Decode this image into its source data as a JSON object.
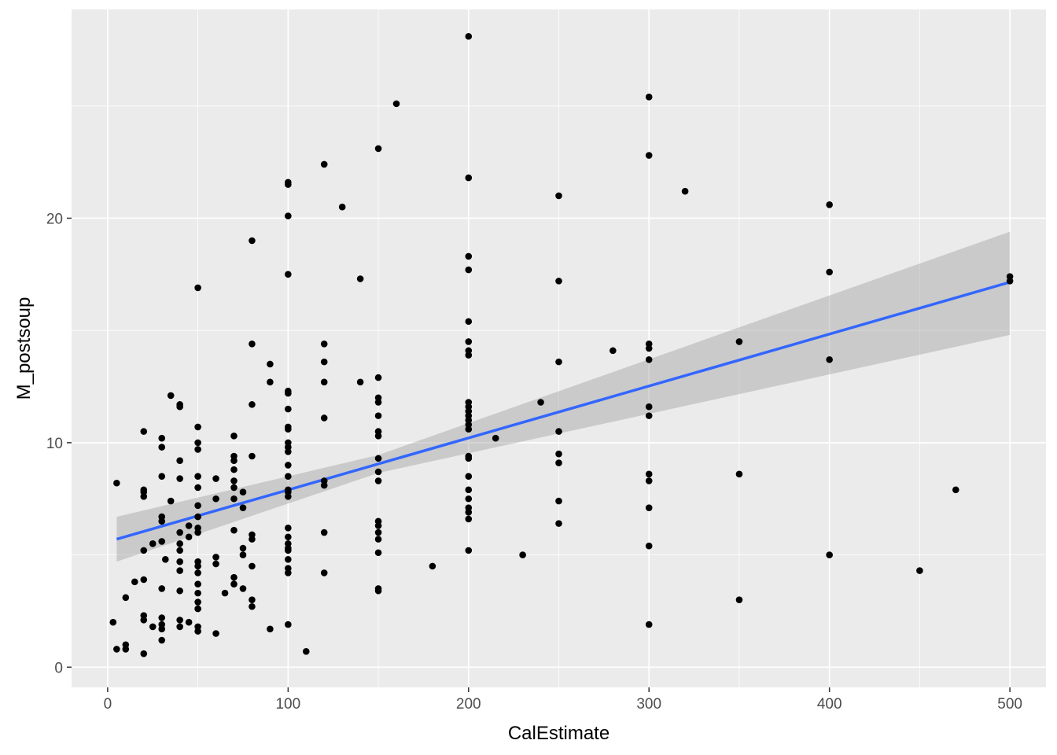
{
  "chart_data": {
    "type": "scatter",
    "xlabel": "CalEstimate",
    "ylabel": "M_postsoup",
    "xlim": [
      -20,
      520
    ],
    "ylim": [
      -0.9,
      29.3
    ],
    "x_ticks": [
      0,
      100,
      200,
      300,
      400,
      500
    ],
    "y_ticks": [
      0,
      10,
      20
    ],
    "x_tick_labels": [
      "0",
      "100",
      "200",
      "300",
      "400",
      "500"
    ],
    "y_tick_labels": [
      "0",
      "10",
      "20"
    ],
    "grid": true,
    "legend": "none",
    "points": [
      [
        5,
        8.2
      ],
      [
        5,
        0.8
      ],
      [
        3,
        2.0
      ],
      [
        10,
        1.0
      ],
      [
        10,
        0.8
      ],
      [
        10,
        3.1
      ],
      [
        15,
        3.8
      ],
      [
        20,
        10.5
      ],
      [
        20,
        7.9
      ],
      [
        20,
        7.6
      ],
      [
        20,
        7.8
      ],
      [
        20,
        5.2
      ],
      [
        20,
        3.9
      ],
      [
        20,
        2.3
      ],
      [
        20,
        2.1
      ],
      [
        20,
        0.6
      ],
      [
        25,
        5.5
      ],
      [
        25,
        1.8
      ],
      [
        30,
        10.2
      ],
      [
        30,
        9.8
      ],
      [
        30,
        8.5
      ],
      [
        30,
        6.7
      ],
      [
        30,
        6.5
      ],
      [
        30,
        5.6
      ],
      [
        30,
        3.5
      ],
      [
        30,
        2.2
      ],
      [
        30,
        1.9
      ],
      [
        30,
        1.7
      ],
      [
        30,
        1.2
      ],
      [
        32,
        4.8
      ],
      [
        35,
        12.1
      ],
      [
        35,
        7.4
      ],
      [
        40,
        11.7
      ],
      [
        40,
        11.6
      ],
      [
        40,
        9.2
      ],
      [
        40,
        8.4
      ],
      [
        40,
        6.0
      ],
      [
        40,
        5.5
      ],
      [
        40,
        5.2
      ],
      [
        40,
        4.7
      ],
      [
        40,
        4.3
      ],
      [
        40,
        3.4
      ],
      [
        40,
        2.1
      ],
      [
        40,
        1.8
      ],
      [
        45,
        6.3
      ],
      [
        45,
        5.8
      ],
      [
        45,
        2.0
      ],
      [
        50,
        16.9
      ],
      [
        50,
        10.7
      ],
      [
        50,
        10.0
      ],
      [
        50,
        9.7
      ],
      [
        50,
        8.5
      ],
      [
        50,
        8.0
      ],
      [
        50,
        7.2
      ],
      [
        50,
        6.7
      ],
      [
        50,
        6.2
      ],
      [
        50,
        6.0
      ],
      [
        50,
        4.7
      ],
      [
        50,
        4.5
      ],
      [
        50,
        4.2
      ],
      [
        50,
        3.7
      ],
      [
        50,
        3.3
      ],
      [
        50,
        2.9
      ],
      [
        50,
        2.6
      ],
      [
        50,
        1.8
      ],
      [
        50,
        1.6
      ],
      [
        60,
        8.4
      ],
      [
        60,
        7.5
      ],
      [
        60,
        4.9
      ],
      [
        60,
        4.6
      ],
      [
        60,
        1.5
      ],
      [
        65,
        3.3
      ],
      [
        70,
        10.3
      ],
      [
        70,
        9.4
      ],
      [
        70,
        9.2
      ],
      [
        70,
        8.8
      ],
      [
        70,
        8.3
      ],
      [
        70,
        8.0
      ],
      [
        70,
        7.5
      ],
      [
        70,
        6.1
      ],
      [
        70,
        4.0
      ],
      [
        70,
        3.7
      ],
      [
        75,
        7.8
      ],
      [
        75,
        7.1
      ],
      [
        75,
        5.3
      ],
      [
        75,
        5.0
      ],
      [
        75,
        3.5
      ],
      [
        80,
        19.0
      ],
      [
        80,
        14.4
      ],
      [
        80,
        11.7
      ],
      [
        80,
        9.4
      ],
      [
        80,
        5.9
      ],
      [
        80,
        5.7
      ],
      [
        80,
        4.5
      ],
      [
        80,
        3.0
      ],
      [
        80,
        2.7
      ],
      [
        90,
        13.5
      ],
      [
        90,
        12.7
      ],
      [
        90,
        1.7
      ],
      [
        100,
        21.6
      ],
      [
        100,
        21.5
      ],
      [
        100,
        20.1
      ],
      [
        100,
        17.5
      ],
      [
        100,
        12.3
      ],
      [
        100,
        12.2
      ],
      [
        100,
        11.5
      ],
      [
        100,
        10.7
      ],
      [
        100,
        10.6
      ],
      [
        100,
        10.0
      ],
      [
        100,
        9.8
      ],
      [
        100,
        9.6
      ],
      [
        100,
        9.0
      ],
      [
        100,
        8.5
      ],
      [
        100,
        7.9
      ],
      [
        100,
        7.8
      ],
      [
        100,
        7.6
      ],
      [
        100,
        6.2
      ],
      [
        100,
        5.8
      ],
      [
        100,
        5.5
      ],
      [
        100,
        5.3
      ],
      [
        100,
        5.2
      ],
      [
        100,
        4.8
      ],
      [
        100,
        4.4
      ],
      [
        100,
        4.2
      ],
      [
        100,
        1.9
      ],
      [
        110,
        0.7
      ],
      [
        120,
        22.4
      ],
      [
        120,
        14.4
      ],
      [
        120,
        13.6
      ],
      [
        120,
        12.7
      ],
      [
        120,
        11.1
      ],
      [
        120,
        8.3
      ],
      [
        120,
        8.1
      ],
      [
        120,
        6.0
      ],
      [
        120,
        4.2
      ],
      [
        130,
        20.5
      ],
      [
        140,
        17.3
      ],
      [
        140,
        12.7
      ],
      [
        150,
        23.1
      ],
      [
        150,
        12.9
      ],
      [
        150,
        12.0
      ],
      [
        150,
        11.8
      ],
      [
        150,
        11.2
      ],
      [
        150,
        10.5
      ],
      [
        150,
        10.3
      ],
      [
        150,
        9.3
      ],
      [
        150,
        8.7
      ],
      [
        150,
        8.3
      ],
      [
        150,
        6.5
      ],
      [
        150,
        6.3
      ],
      [
        150,
        6.0
      ],
      [
        150,
        5.7
      ],
      [
        150,
        5.1
      ],
      [
        150,
        3.5
      ],
      [
        150,
        3.4
      ],
      [
        160,
        25.1
      ],
      [
        180,
        4.5
      ],
      [
        200,
        28.1
      ],
      [
        200,
        21.8
      ],
      [
        200,
        18.3
      ],
      [
        200,
        17.7
      ],
      [
        200,
        15.4
      ],
      [
        200,
        14.5
      ],
      [
        200,
        14.1
      ],
      [
        200,
        13.9
      ],
      [
        200,
        11.8
      ],
      [
        200,
        11.6
      ],
      [
        200,
        11.4
      ],
      [
        200,
        11.2
      ],
      [
        200,
        11.0
      ],
      [
        200,
        10.8
      ],
      [
        200,
        10.6
      ],
      [
        200,
        9.4
      ],
      [
        200,
        9.3
      ],
      [
        200,
        8.5
      ],
      [
        200,
        7.9
      ],
      [
        200,
        7.5
      ],
      [
        200,
        7.1
      ],
      [
        200,
        6.9
      ],
      [
        200,
        6.6
      ],
      [
        200,
        5.2
      ],
      [
        215,
        10.2
      ],
      [
        230,
        5.0
      ],
      [
        240,
        11.8
      ],
      [
        250,
        21.0
      ],
      [
        250,
        17.2
      ],
      [
        250,
        13.6
      ],
      [
        250,
        10.5
      ],
      [
        250,
        9.5
      ],
      [
        250,
        9.1
      ],
      [
        250,
        7.4
      ],
      [
        250,
        6.4
      ],
      [
        280,
        14.1
      ],
      [
        300,
        25.4
      ],
      [
        300,
        22.8
      ],
      [
        300,
        14.4
      ],
      [
        300,
        14.2
      ],
      [
        300,
        13.7
      ],
      [
        300,
        11.6
      ],
      [
        300,
        11.2
      ],
      [
        300,
        8.6
      ],
      [
        300,
        8.3
      ],
      [
        300,
        7.1
      ],
      [
        300,
        5.4
      ],
      [
        300,
        1.9
      ],
      [
        320,
        21.2
      ],
      [
        350,
        14.5
      ],
      [
        350,
        8.6
      ],
      [
        350,
        3.0
      ],
      [
        400,
        20.6
      ],
      [
        400,
        17.6
      ],
      [
        400,
        13.7
      ],
      [
        400,
        5.0
      ],
      [
        450,
        4.3
      ],
      [
        470,
        7.9
      ],
      [
        500,
        17.4
      ],
      [
        500,
        17.2
      ]
    ],
    "fit_line": {
      "x": [
        5,
        500
      ],
      "y": [
        5.7,
        17.15
      ],
      "color": "#3366ff"
    },
    "confidence_band": {
      "x": [
        5,
        150,
        500
      ],
      "upper": [
        6.7,
        9.45,
        19.4
      ],
      "lower": [
        4.7,
        8.65,
        14.8
      ],
      "color": "#999999"
    },
    "colors": {
      "panel_background": "#ebebeb",
      "grid_major": "#ffffff",
      "points": "#000000",
      "tick_text": "#4d4d4d",
      "tick_marks": "#333333"
    }
  }
}
